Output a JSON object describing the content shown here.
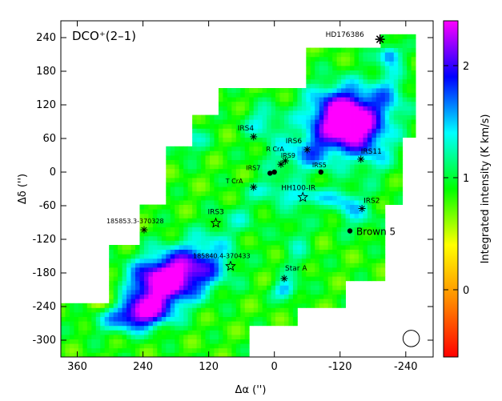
{
  "chart_data": {
    "type": "heatmap",
    "title": "DCO⁺(2–1)",
    "xlabel": "Δα  ('')",
    "ylabel": "Δδ  ('')",
    "colorbar_label": "Integrated intensity  (K km/s)",
    "xlim": [
      390,
      -290
    ],
    "ylim": [
      -330,
      270
    ],
    "clim": [
      -0.6,
      2.4
    ],
    "xticks": [
      360,
      240,
      120,
      0,
      -120,
      -240
    ],
    "yticks": [
      240,
      180,
      120,
      60,
      0,
      -60,
      -120,
      -180,
      -240,
      -300
    ],
    "colorbar_ticks": [
      0,
      1,
      2
    ],
    "colormap": [
      "#ff0000",
      "#ff8800",
      "#ffff00",
      "#00ff00",
      "#00ffff",
      "#0000ff",
      "#ff00ff"
    ],
    "beam": {
      "x": -250,
      "y": -297,
      "diameter_arcsec": 30
    },
    "emission": [
      {
        "x": 270,
        "y": 170,
        "sx": 25,
        "sy": 20,
        "v": 0.5
      },
      {
        "x": 265,
        "y": 130,
        "sx": 20,
        "sy": 15,
        "v": 0.5
      },
      {
        "x": 210,
        "y": 140,
        "sx": 20,
        "sy": 15,
        "v": 0.4
      },
      {
        "x": 160,
        "y": 60,
        "sx": 25,
        "sy": 20,
        "v": 0.5
      },
      {
        "x": 20,
        "y": 90,
        "sx": 25,
        "sy": 20,
        "v": 0.5
      },
      {
        "x": -30,
        "y": 30,
        "sx": 40,
        "sy": 25,
        "v": 0.4
      },
      {
        "x": -80,
        "y": 40,
        "sx": 30,
        "sy": 30,
        "v": 0.5
      },
      {
        "x": -125,
        "y": 105,
        "sx": 45,
        "sy": 35,
        "v": 1.45
      },
      {
        "x": -140,
        "y": 80,
        "sx": 30,
        "sy": 30,
        "v": 0.9
      },
      {
        "x": -180,
        "y": 40,
        "sx": 30,
        "sy": 35,
        "v": 0.5
      },
      {
        "x": -210,
        "y": 140,
        "sx": 25,
        "sy": 40,
        "v": 0.5
      },
      {
        "x": -210,
        "y": 210,
        "sx": 14,
        "sy": 12,
        "v": 0.8
      },
      {
        "x": 10,
        "y": -30,
        "sx": 25,
        "sy": 12,
        "v": 0.5
      },
      {
        "x": -60,
        "y": -45,
        "sx": 35,
        "sy": 12,
        "v": 0.55
      },
      {
        "x": -130,
        "y": -55,
        "sx": 20,
        "sy": 20,
        "v": 0.5
      },
      {
        "x": -160,
        "y": -80,
        "sx": 25,
        "sy": 25,
        "v": 0.3
      },
      {
        "x": -40,
        "y": -130,
        "sx": 20,
        "sy": 50,
        "v": 0.3
      },
      {
        "x": -20,
        "y": -210,
        "sx": 15,
        "sy": 12,
        "v": 0.7
      },
      {
        "x": 110,
        "y": -120,
        "sx": 30,
        "sy": 25,
        "v": 0.25
      },
      {
        "x": 150,
        "y": -170,
        "sx": 45,
        "sy": 30,
        "v": 1.1
      },
      {
        "x": 210,
        "y": -200,
        "sx": 40,
        "sy": 30,
        "v": 1.5
      },
      {
        "x": 240,
        "y": -250,
        "sx": 35,
        "sy": 20,
        "v": 1.2
      },
      {
        "x": 290,
        "y": -260,
        "sx": 40,
        "sy": 20,
        "v": 0.5
      },
      {
        "x": 60,
        "y": -80,
        "sx": 30,
        "sy": 20,
        "v": 0.3
      },
      {
        "x": 310,
        "y": -230,
        "sx": 30,
        "sy": 20,
        "v": -0.5
      }
    ],
    "coverage_polygon": [
      [
        390,
        -230
      ],
      [
        300,
        -230
      ],
      [
        300,
        -130
      ],
      [
        250,
        -130
      ],
      [
        250,
        -60
      ],
      [
        200,
        -60
      ],
      [
        200,
        50
      ],
      [
        150,
        50
      ],
      [
        150,
        100
      ],
      [
        100,
        100
      ],
      [
        100,
        150
      ],
      [
        -60,
        150
      ],
      [
        -60,
        220
      ],
      [
        -190,
        220
      ],
      [
        -190,
        250
      ],
      [
        -260,
        250
      ],
      [
        -260,
        60
      ],
      [
        -230,
        60
      ],
      [
        -230,
        -60
      ],
      [
        -200,
        -60
      ],
      [
        -200,
        -190
      ],
      [
        -130,
        -190
      ],
      [
        -130,
        -240
      ],
      [
        -40,
        -240
      ],
      [
        -40,
        -270
      ],
      [
        50,
        -270
      ],
      [
        50,
        -330
      ],
      [
        390,
        -330
      ]
    ],
    "sources": [
      {
        "label": "HD176386",
        "x": -193,
        "y": 237,
        "marker": "asterisk",
        "label_dx": -68,
        "label_dy": -3,
        "label_size": 9
      },
      {
        "label": "IRS4",
        "x": 38,
        "y": 63,
        "marker": "asterisk",
        "label_dx": -20,
        "label_dy": -8,
        "label_size": 9
      },
      {
        "label": "IRS6",
        "x": -60,
        "y": 40,
        "marker": "asterisk",
        "label_dx": -27,
        "label_dy": -8,
        "label_size": 9
      },
      {
        "label": "R CrA",
        "x": -20,
        "y": 20,
        "marker": "asterisk",
        "label_dx": -24,
        "label_dy": -12,
        "label_size": 8
      },
      {
        "label": "IRS9",
        "x": -12,
        "y": 14,
        "marker": "asterisk",
        "label_dx": 0,
        "label_dy": -8,
        "label_size": 8
      },
      {
        "label": "IRS7",
        "x": 8,
        "y": -2,
        "marker": "dot",
        "label_dx": -30,
        "label_dy": -4,
        "label_size": 8
      },
      {
        "label": "",
        "x": 0,
        "y": 0,
        "marker": "dot",
        "label_dx": 0,
        "label_dy": 0,
        "label_size": 8
      },
      {
        "label": "IRS5",
        "x": -85,
        "y": 0,
        "marker": "dot",
        "label_dx": -11,
        "label_dy": -6,
        "label_size": 8
      },
      {
        "label": "IRS11",
        "x": -158,
        "y": 23,
        "marker": "asterisk",
        "label_dx": 0,
        "label_dy": -7,
        "label_size": 9
      },
      {
        "label": "T CrA",
        "x": 38,
        "y": -27,
        "marker": "asterisk",
        "label_dx": -35,
        "label_dy": -5,
        "label_size": 8
      },
      {
        "label": "HH100-IR",
        "x": -52,
        "y": -45,
        "marker": "star",
        "label_dx": -27,
        "label_dy": -9,
        "label_size": 9
      },
      {
        "label": "IRS2",
        "x": -160,
        "y": -65,
        "marker": "asterisk",
        "label_dx": 2,
        "label_dy": -7,
        "label_size": 9
      },
      {
        "label": "Brown 5",
        "x": -138,
        "y": -105,
        "marker": "dot",
        "label_dx": 8,
        "label_dy": 5,
        "label_size": 12
      },
      {
        "label": "185853.3-370328",
        "x": 238,
        "y": -103,
        "marker": "asterisk",
        "label_dx": -47,
        "label_dy": -8,
        "label_size": 8
      },
      {
        "label": "IRS3",
        "x": 107,
        "y": -91,
        "marker": "star",
        "label_dx": -10,
        "label_dy": -11,
        "label_size": 9
      },
      {
        "label": "185840.4-370433",
        "x": 80,
        "y": -168,
        "marker": "star",
        "label_dx": -47,
        "label_dy": -10,
        "label_size": 8
      },
      {
        "label": "Star A",
        "x": -18,
        "y": -190,
        "marker": "asterisk",
        "label_dx": 1,
        "label_dy": -10,
        "label_size": 9
      }
    ]
  }
}
